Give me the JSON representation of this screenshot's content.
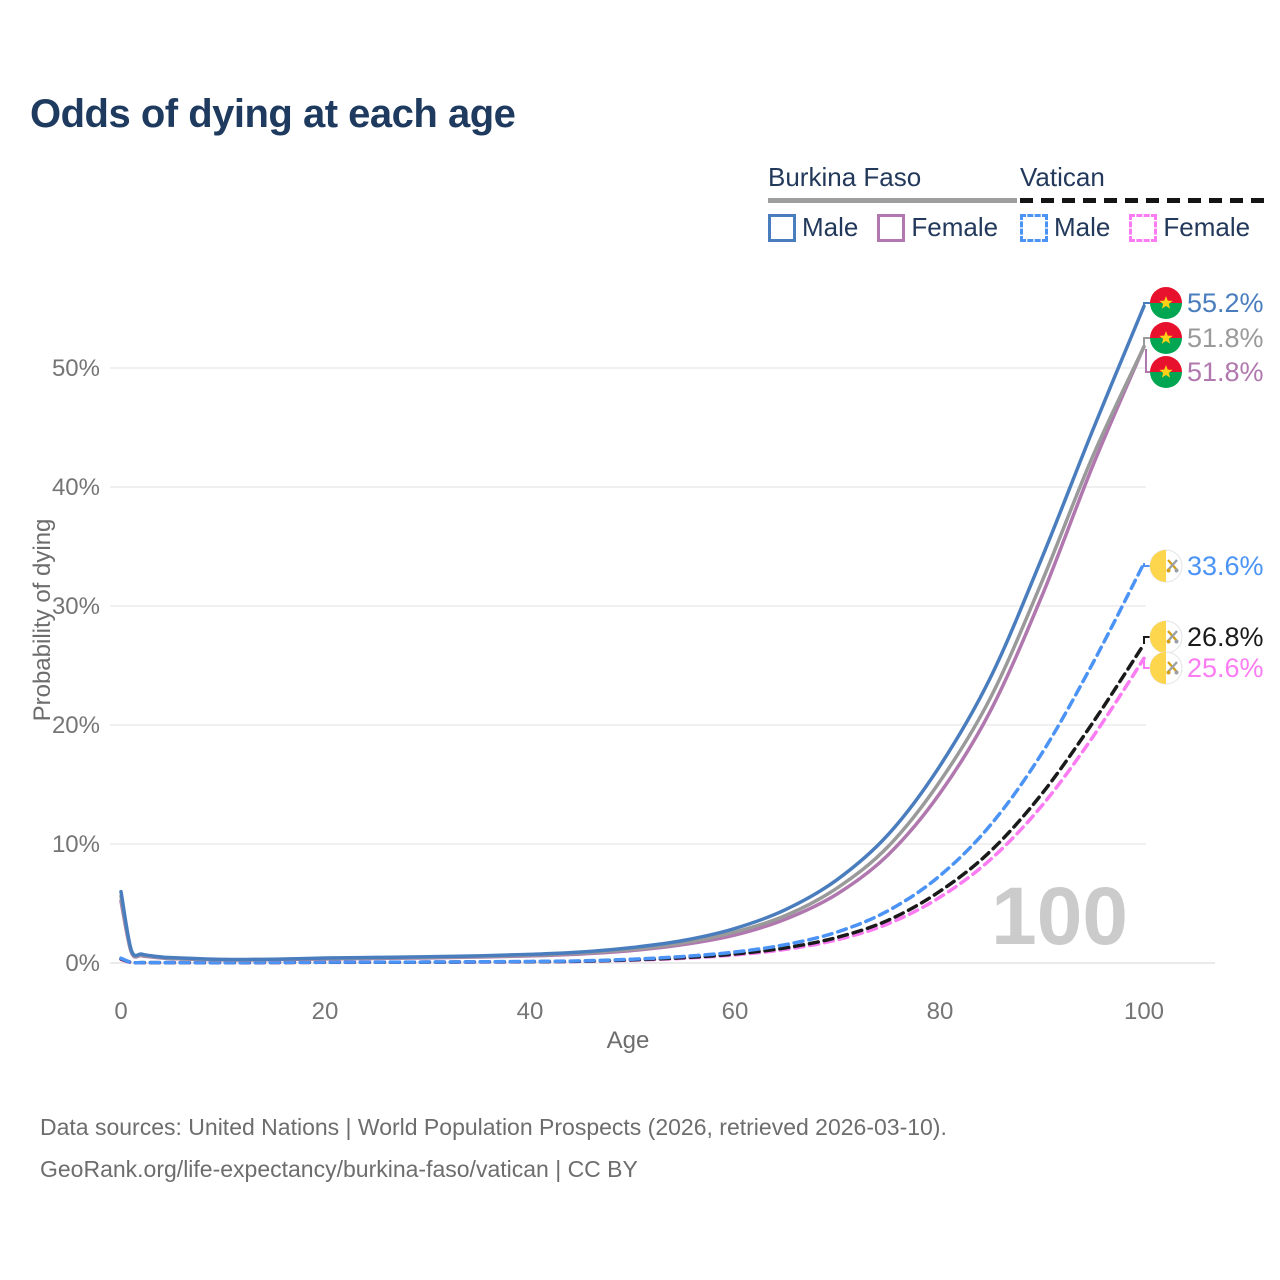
{
  "title": "Odds of dying at each age",
  "legend": {
    "groups": [
      {
        "label": "Burkina Faso",
        "line_style": "solid",
        "underline_color": "#9e9e9e",
        "items": [
          {
            "label": "Male",
            "color": "#4a7dbd"
          },
          {
            "label": "Female",
            "color": "#b078ae"
          }
        ]
      },
      {
        "label": "Vatican",
        "line_style": "dashed",
        "underline_color": "#141414",
        "items": [
          {
            "label": "Male",
            "color": "#4b93f5"
          },
          {
            "label": "Female",
            "color": "#fb7cf2"
          }
        ]
      }
    ]
  },
  "axes": {
    "x_label": "Age",
    "y_label": "Probability of dying",
    "x_ticks": [
      "0",
      "20",
      "40",
      "60",
      "80",
      "100"
    ],
    "y_ticks": [
      "0%",
      "10%",
      "20%",
      "30%",
      "40%",
      "50%"
    ]
  },
  "hover_age_indicator": "100",
  "end_labels": [
    {
      "text": "55.2%",
      "color": "#4a7dbd",
      "flag": "burkina-faso"
    },
    {
      "text": "51.8%",
      "color": "#9a9a9a",
      "flag": "burkina-faso"
    },
    {
      "text": "51.8%",
      "color": "#b078ae",
      "flag": "burkina-faso"
    },
    {
      "text": "33.6%",
      "color": "#4b93f5",
      "flag": "vatican"
    },
    {
      "text": "26.8%",
      "color": "#1a1a1a",
      "flag": "vatican"
    },
    {
      "text": "25.6%",
      "color": "#fb7cf2",
      "flag": "vatican"
    }
  ],
  "footer": {
    "line1": "Data sources: United Nations | World Population Prospects (2026, retrieved 2026-03-10).",
    "line2": "GeoRank.org/life-expectancy/burkina-faso/vatican | CC BY"
  },
  "chart_data": {
    "type": "line",
    "title": "Odds of dying at each age",
    "xlabel": "Age",
    "ylabel": "Probability of dying",
    "x_range": [
      0,
      100
    ],
    "y_range_percent": [
      0,
      57
    ],
    "grid": "horizontal-only",
    "legend_position": "top-right",
    "x": [
      0,
      1,
      2,
      3,
      4,
      5,
      10,
      15,
      20,
      25,
      30,
      35,
      40,
      45,
      50,
      55,
      60,
      65,
      70,
      75,
      80,
      85,
      90,
      95,
      100
    ],
    "series": [
      {
        "id": "burkina-faso-male",
        "name": "Burkina Faso Male",
        "color": "#4a7dbd",
        "dash": "solid",
        "end_label": "55.2%",
        "values_percent": [
          6.0,
          1.1,
          0.75,
          0.6,
          0.5,
          0.45,
          0.3,
          0.32,
          0.42,
          0.47,
          0.52,
          0.6,
          0.72,
          0.92,
          1.3,
          1.9,
          2.9,
          4.5,
          7.0,
          10.8,
          16.5,
          24.0,
          34.0,
          44.8,
          55.2
        ]
      },
      {
        "id": "burkina-faso-all",
        "name": "Burkina Faso Both sexes",
        "color": "#9a9a9a",
        "dash": "solid",
        "end_label": "51.8%",
        "values_percent": [
          5.6,
          1.0,
          0.68,
          0.55,
          0.46,
          0.4,
          0.28,
          0.3,
          0.38,
          0.42,
          0.47,
          0.55,
          0.66,
          0.84,
          1.15,
          1.7,
          2.6,
          4.0,
          6.3,
          9.8,
          15.2,
          22.3,
          32.0,
          42.6,
          51.8
        ]
      },
      {
        "id": "burkina-faso-female",
        "name": "Burkina Faso Female",
        "color": "#b078ae",
        "dash": "solid",
        "end_label": "51.8%",
        "values_percent": [
          5.2,
          0.92,
          0.62,
          0.5,
          0.42,
          0.37,
          0.26,
          0.28,
          0.34,
          0.38,
          0.43,
          0.5,
          0.6,
          0.76,
          1.05,
          1.55,
          2.35,
          3.7,
          5.8,
          9.1,
          14.2,
          21.2,
          30.8,
          41.8,
          51.8
        ]
      },
      {
        "id": "vatican-male",
        "name": "Vatican Male",
        "color": "#4b93f5",
        "dash": "dashed",
        "end_label": "33.6%",
        "values_percent": [
          0.4,
          0.05,
          0.03,
          0.03,
          0.03,
          0.03,
          0.03,
          0.05,
          0.07,
          0.07,
          0.08,
          0.1,
          0.13,
          0.18,
          0.32,
          0.55,
          0.92,
          1.55,
          2.6,
          4.4,
          7.3,
          11.6,
          17.6,
          25.2,
          33.6
        ]
      },
      {
        "id": "vatican-all",
        "name": "Vatican Both sexes",
        "color": "#1a1a1a",
        "dash": "dashed",
        "end_label": "26.8%",
        "values_percent": [
          0.35,
          0.05,
          0.03,
          0.03,
          0.03,
          0.03,
          0.03,
          0.04,
          0.06,
          0.06,
          0.07,
          0.09,
          0.11,
          0.15,
          0.27,
          0.45,
          0.76,
          1.28,
          2.15,
          3.6,
          6.0,
          9.4,
          14.2,
          20.2,
          26.8
        ]
      },
      {
        "id": "vatican-female",
        "name": "Vatican Female",
        "color": "#fb7cf2",
        "dash": "dashed",
        "end_label": "25.6%",
        "values_percent": [
          0.3,
          0.04,
          0.02,
          0.02,
          0.02,
          0.02,
          0.02,
          0.04,
          0.05,
          0.06,
          0.07,
          0.08,
          0.1,
          0.14,
          0.24,
          0.4,
          0.68,
          1.15,
          1.95,
          3.3,
          5.5,
          8.7,
          13.2,
          19.0,
          25.6
        ]
      }
    ]
  }
}
